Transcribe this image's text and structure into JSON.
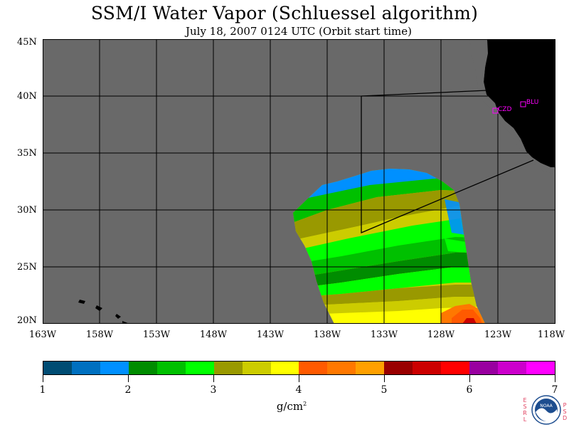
{
  "title": "SSM/I Water Vapor (Schluessel algorithm)",
  "subtitle": "July 18, 2007  0124 UTC  (Orbit start time)",
  "map": {
    "background_color": "#696969",
    "land_color": "#000000",
    "latitude_labels": [
      "45N",
      "40N",
      "35N",
      "30N",
      "25N",
      "20N"
    ],
    "longitude_labels": [
      "163W",
      "158W",
      "153W",
      "148W",
      "143W",
      "138W",
      "133W",
      "128W",
      "123W",
      "118W"
    ],
    "stations": [
      "CZD",
      "BLU"
    ],
    "station_color": "#ff00ff"
  },
  "colorbar": {
    "colors": [
      "#004c73",
      "#0070c0",
      "#0090ff",
      "#008c00",
      "#00c000",
      "#00ff00",
      "#999900",
      "#cccc00",
      "#ffff00",
      "#ff5a00",
      "#ff7800",
      "#ffa000",
      "#990000",
      "#cc0000",
      "#ff0000",
      "#9900a0",
      "#cc00cc",
      "#ff00ff"
    ],
    "tick_labels": [
      "1",
      "2",
      "3",
      "4",
      "5",
      "6",
      "7"
    ],
    "unit_main": "g/cm",
    "unit_sup": "2"
  },
  "logo": {
    "name": "NOAA",
    "left_letters": "ESRL",
    "right_letters": "PSD"
  }
}
